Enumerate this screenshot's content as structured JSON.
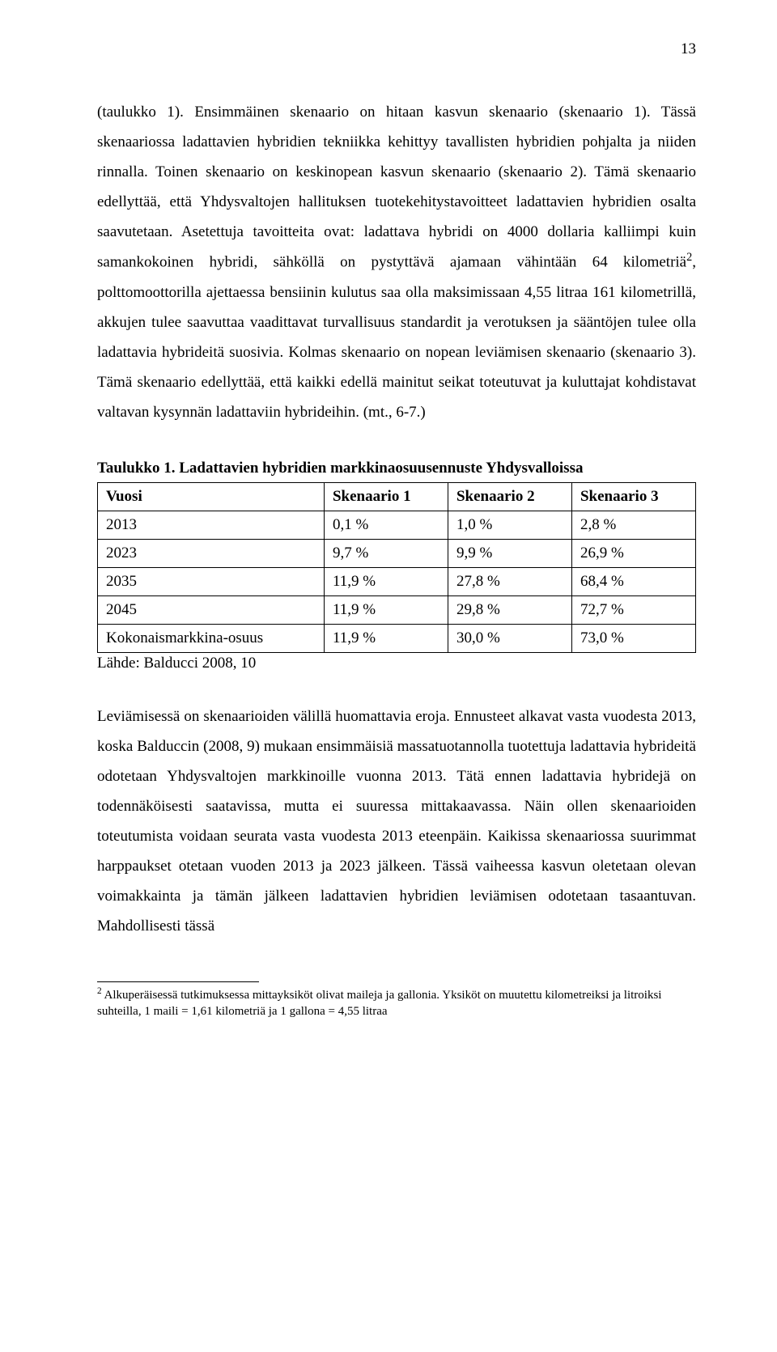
{
  "page_number": "13",
  "paragraph1": "(taulukko 1). Ensimmäinen skenaario on hitaan kasvun skenaario (skenaario 1). Tässä skenaariossa ladattavien hybridien tekniikka kehittyy tavallisten hybridien pohjalta ja niiden rinnalla. Toinen skenaario on keskinopean kasvun skenaario (skenaario 2). Tämä skenaario edellyttää, että Yhdysvaltojen hallituksen tuotekehitystavoitteet ladattavien hybridien osalta saavutetaan. Asetettuja tavoitteita ovat: ladattava hybridi on 4000 dollaria kalliimpi kuin samankokoinen hybridi, sähköllä on pystyttävä ajamaan vähintään 64 kilometriä",
  "paragraph1_after_sup": ", polttomoottorilla ajettaessa bensiinin kulutus saa olla maksimissaan 4,55 litraa 161 kilometrillä, akkujen tulee saavuttaa vaadittavat turvallisuus standardit ja verotuksen ja sääntöjen tulee olla ladattavia hybrideitä suosivia. Kolmas skenaario on nopean leviämisen skenaario (skenaario 3). Tämä skenaario edellyttää, että kaikki edellä mainitut seikat toteutuvat ja kuluttajat kohdistavat valtavan kysynnän ladattaviin hybrideihin. (mt., 6-7.)",
  "sup_marker": "2",
  "table": {
    "title": "Taulukko 1. Ladattavien hybridien markkinaosuusennuste Yhdysvalloissa",
    "headers": [
      "Vuosi",
      "Skenaario 1",
      "Skenaario 2",
      "Skenaario 3"
    ],
    "rows": [
      [
        "2013",
        "0,1 %",
        "1,0 %",
        "2,8 %"
      ],
      [
        "2023",
        "9,7 %",
        "9,9 %",
        "26,9 %"
      ],
      [
        "2035",
        "11,9 %",
        "27,8 %",
        "68,4 %"
      ],
      [
        "2045",
        "11,9 %",
        "29,8 %",
        "72,7 %"
      ],
      [
        "Kokonaismarkkina-osuus",
        "11,9 %",
        "30,0 %",
        "73,0 %"
      ]
    ],
    "source": "Lähde: Balducci 2008, 10"
  },
  "paragraph2": "Leviämisessä on skenaarioiden välillä huomattavia eroja. Ennusteet alkavat vasta vuodesta 2013, koska Balduccin (2008, 9) mukaan ensimmäisiä massatuotannolla tuotettuja ladattavia hybrideitä odotetaan Yhdysvaltojen markkinoille vuonna 2013. Tätä ennen ladattavia hybridejä on todennäköisesti saatavissa, mutta ei suuressa mittakaavassa. Näin ollen skenaarioiden toteutumista voidaan seurata vasta vuodesta 2013 eteenpäin. Kaikissa skenaariossa suurimmat harppaukset otetaan vuoden 2013 ja 2023 jälkeen. Tässä vaiheessa kasvun oletetaan olevan voimakkainta ja tämän jälkeen ladattavien hybridien leviämisen odotetaan tasaantuvan. Mahdollisesti tässä",
  "footnote": {
    "marker": "2",
    "text": " Alkuperäisessä tutkimuksessa mittayksiköt olivat maileja ja gallonia. Yksiköt on muutettu kilometreiksi ja litroiksi suhteilla, 1 maili = 1,61 kilometriä ja 1 gallona = 4,55 litraa"
  }
}
